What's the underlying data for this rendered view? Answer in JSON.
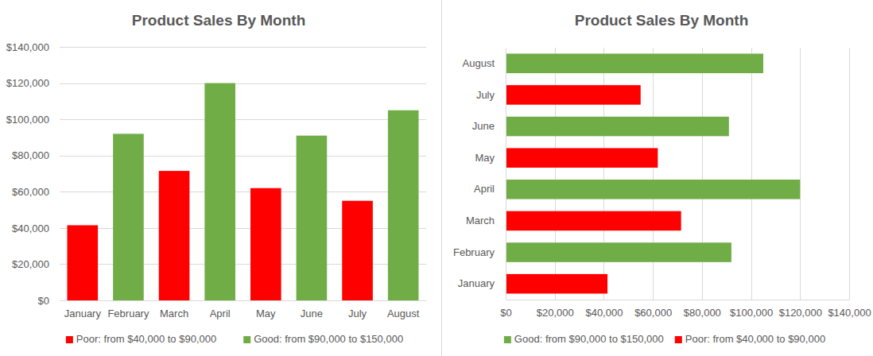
{
  "chart_data": [
    {
      "type": "bar",
      "title": "Product Sales By Month",
      "categories": [
        "January",
        "February",
        "March",
        "April",
        "May",
        "June",
        "July",
        "August"
      ],
      "series": [
        {
          "name": "Poor: from $40,000 to $90,000",
          "color": "#ff0000",
          "values": [
            41500,
            null,
            71500,
            null,
            62000,
            null,
            55000,
            null
          ]
        },
        {
          "name": "Good: from $90,000 to $150,000",
          "color": "#70ad47",
          "values": [
            null,
            92000,
            null,
            120000,
            null,
            91000,
            null,
            105000
          ]
        }
      ],
      "stacked": true,
      "ylim": [
        0,
        140000
      ],
      "yticks": [
        {
          "value": 0,
          "label": "$0"
        },
        {
          "value": 20000,
          "label": "$20,000"
        },
        {
          "value": 40000,
          "label": "$40,000"
        },
        {
          "value": 60000,
          "label": "$60,000"
        },
        {
          "value": 80000,
          "label": "$80,000"
        },
        {
          "value": 100000,
          "label": "$100,000"
        },
        {
          "value": 120000,
          "label": "$120,000"
        },
        {
          "value": 140000,
          "label": "$140,000"
        }
      ],
      "grid": true,
      "legend": "bottom"
    },
    {
      "type": "bar",
      "title": "Product Sales By Month",
      "orientation": "horizontal",
      "categories": [
        "January",
        "February",
        "March",
        "April",
        "May",
        "June",
        "July",
        "August"
      ],
      "series": [
        {
          "name": "Good: from $90,000 to $150,000",
          "color": "#70ad47",
          "values": [
            null,
            92000,
            null,
            120000,
            null,
            91000,
            null,
            105000
          ]
        },
        {
          "name": "Poor: from $40,000 to $90,000",
          "color": "#ff0000",
          "values": [
            41500,
            null,
            71500,
            null,
            62000,
            null,
            55000,
            null
          ]
        }
      ],
      "stacked": true,
      "xlim": [
        0,
        140000
      ],
      "xticks": [
        {
          "value": 0,
          "label": "$0"
        },
        {
          "value": 20000,
          "label": "$20,000"
        },
        {
          "value": 40000,
          "label": "$40,000"
        },
        {
          "value": 60000,
          "label": "$60,000"
        },
        {
          "value": 80000,
          "label": "$80,000"
        },
        {
          "value": 100000,
          "label": "$100,000"
        },
        {
          "value": 120000,
          "label": "$120,000"
        },
        {
          "value": 140000,
          "label": "$140,000"
        }
      ],
      "grid": true,
      "legend": "bottom"
    }
  ]
}
